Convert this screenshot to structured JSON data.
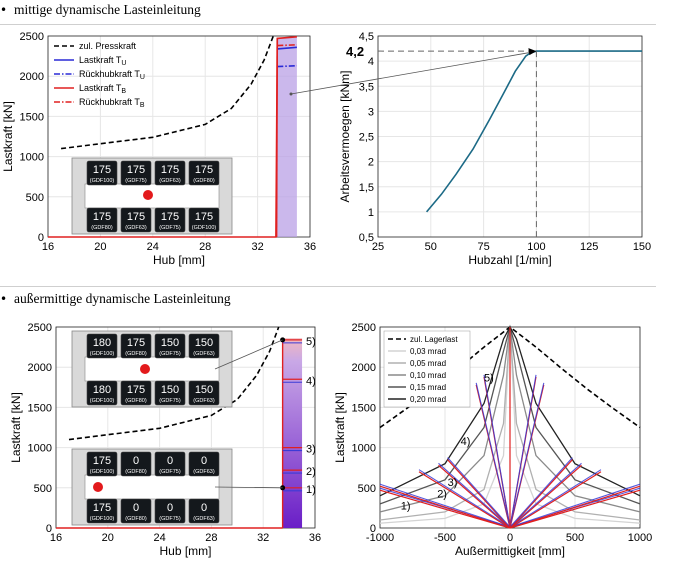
{
  "headings": [
    {
      "text": "mittige dynamische Lasteinleitung"
    },
    {
      "text": "außermittige dynamische Lasteinleitung"
    }
  ],
  "chart_data": [
    {
      "id": "top_left",
      "type": "line",
      "xlabel": "Hub [mm]",
      "ylabel": "Lastkraft [kN]",
      "xlim": [
        16,
        36
      ],
      "ylim": [
        0,
        2500
      ],
      "xticks": [
        16,
        20,
        24,
        28,
        32,
        36
      ],
      "yticks": [
        0,
        500,
        1000,
        1500,
        2000,
        2500
      ],
      "grid": true,
      "legend": {
        "location": "top-right",
        "entries": [
          {
            "label": "zul. Presskraft",
            "color": "#000000",
            "style": "dashed"
          },
          {
            "label": "Lastkraft T",
            "sub": "U",
            "color": "#2a2ad6",
            "style": "solid"
          },
          {
            "label": "Rückhubkraft T",
            "sub": "U",
            "color": "#2a2ad6",
            "style": "dashdot"
          },
          {
            "label": "Lastkraft T",
            "sub": "B",
            "color": "#e02020",
            "style": "solid"
          },
          {
            "label": "Rückhubkraft T",
            "sub": "B",
            "color": "#e02020",
            "style": "dashdot"
          }
        ]
      },
      "series": [
        {
          "name": "zul. Presskraft",
          "x": [
            17,
            20,
            24,
            28,
            30,
            31.5,
            32.5,
            33.2
          ],
          "y": [
            1100,
            1160,
            1240,
            1400,
            1600,
            1900,
            2200,
            2500
          ]
        },
        {
          "name": "Lastkraft T_U",
          "x": [
            33.5,
            35
          ],
          "y": [
            2340,
            2360
          ]
        },
        {
          "name": "Rückhubkraft T_U",
          "x": [
            33.5,
            35
          ],
          "y": [
            2120,
            2130
          ]
        },
        {
          "name": "Lastkraft T_B",
          "x": [
            16,
            33.4,
            33.5,
            35
          ],
          "y": [
            0,
            0,
            2470,
            2490
          ]
        },
        {
          "name": "Rückhubkraft T_B",
          "x": [
            33.5,
            35
          ],
          "y": [
            2380,
            2390
          ]
        }
      ],
      "inset": {
        "rows": [
          [
            {
              "value": "175",
              "label": "(GDF100)"
            },
            {
              "value": "175",
              "label": "(GDF75)"
            },
            {
              "value": "175",
              "label": "(GDF63)"
            },
            {
              "value": "175",
              "label": "(GDF80)"
            }
          ],
          [
            {
              "value": "175",
              "label": "(GDF80)"
            },
            {
              "value": "175",
              "label": "(GDF63)"
            },
            {
              "value": "175",
              "label": "(GDF75)"
            },
            {
              "value": "175",
              "label": "(GDF100)"
            }
          ]
        ]
      }
    },
    {
      "id": "top_right",
      "type": "line",
      "xlabel": "Hubzahl [1/min]",
      "ylabel": "Arbeitsvermoegen [kNm]",
      "xlim": [
        25,
        150
      ],
      "ylim": [
        0.5,
        4.5
      ],
      "xticks": [
        25,
        50,
        75,
        100,
        125,
        150
      ],
      "yticks": [
        0.5,
        1,
        1.5,
        2,
        2.5,
        3,
        3.5,
        4,
        4.5
      ],
      "grid": true,
      "annotation": {
        "text": "4,2",
        "x": 100,
        "y": 4.2
      },
      "series": [
        {
          "name": "Arbeitsvermoegen",
          "x": [
            48,
            55,
            62,
            70,
            78,
            85,
            90,
            95,
            97,
            100,
            150
          ],
          "y": [
            1.0,
            1.35,
            1.75,
            2.25,
            2.85,
            3.4,
            3.8,
            4.1,
            4.16,
            4.2,
            4.2
          ]
        }
      ]
    },
    {
      "id": "bottom_left",
      "type": "line",
      "xlabel": "Hub [mm]",
      "ylabel": "Lastkraft [kN]",
      "xlim": [
        16,
        36
      ],
      "ylim": [
        0,
        2500
      ],
      "xticks": [
        16,
        20,
        24,
        28,
        32,
        36
      ],
      "yticks": [
        0,
        500,
        1000,
        1500,
        2000,
        2500
      ],
      "grid": true,
      "markers": [
        {
          "label": "5)",
          "y": 2340
        },
        {
          "label": "4)",
          "y": 1850
        },
        {
          "label": "3)",
          "y": 1000
        },
        {
          "label": "2)",
          "y": 720
        },
        {
          "label": "1)",
          "y": 500
        }
      ],
      "series": [
        {
          "name": "zul. Presskraft",
          "x": [
            17,
            20,
            24,
            28,
            30,
            31.5,
            32.5,
            33.2
          ],
          "y": [
            1100,
            1160,
            1240,
            1400,
            1600,
            1900,
            2200,
            2500
          ]
        }
      ],
      "inset_top": {
        "rows": [
          [
            {
              "value": "180",
              "label": "(GDF100)"
            },
            {
              "value": "175",
              "label": "(GDF80)"
            },
            {
              "value": "150",
              "label": "(GDF75)"
            },
            {
              "value": "150",
              "label": "(GDF63)"
            }
          ],
          [
            {
              "value": "180",
              "label": "(GDF100)"
            },
            {
              "value": "175",
              "label": "(GDF80)"
            },
            {
              "value": "150",
              "label": "(GDF75)"
            },
            {
              "value": "150",
              "label": "(GDF63)"
            }
          ]
        ]
      },
      "inset_bottom": {
        "rows": [
          [
            {
              "value": "175",
              "label": "(GDF100)"
            },
            {
              "value": "0",
              "label": "(GDF80)"
            },
            {
              "value": "0",
              "label": "(GDF75)"
            },
            {
              "value": "0",
              "label": "(GDF63)"
            }
          ],
          [
            {
              "value": "175",
              "label": "(GDF100)"
            },
            {
              "value": "0",
              "label": "(GDF80)"
            },
            {
              "value": "0",
              "label": "(GDF75)"
            },
            {
              "value": "0",
              "label": "(GDF63)"
            }
          ]
        ]
      }
    },
    {
      "id": "bottom_right",
      "type": "line",
      "xlabel": "Außermittigkeit [mm]",
      "ylabel": "Lastkraft [kN]",
      "xlim": [
        -1000,
        1000
      ],
      "ylim": [
        0,
        2500
      ],
      "xticks": [
        -1000,
        -500,
        0,
        500,
        1000
      ],
      "yticks": [
        0,
        500,
        1000,
        1500,
        2000,
        2500
      ],
      "grid": true,
      "legend": {
        "location": "top-left",
        "entries": [
          {
            "label": "zul. Lagerlast",
            "color": "#000000",
            "style": "dashed"
          },
          {
            "label": "0,03 mrad",
            "color": "#d3d3d3",
            "style": "solid"
          },
          {
            "label": "0,05 mrad",
            "color": "#b0b0b0",
            "style": "solid"
          },
          {
            "label": "0,10 mrad",
            "color": "#8a8a8a",
            "style": "solid"
          },
          {
            "label": "0,15 mrad",
            "color": "#555555",
            "style": "solid"
          },
          {
            "label": "0,20 mrad",
            "color": "#222222",
            "style": "solid"
          }
        ]
      },
      "series": [
        {
          "name": "zul. Lagerlast",
          "x": [
            -1000,
            -800,
            -600,
            -400,
            -200,
            0,
            200,
            400,
            600,
            800,
            1000
          ],
          "y": [
            1250,
            1480,
            1720,
            1980,
            2250,
            2500,
            2250,
            1980,
            1720,
            1480,
            1250
          ]
        },
        {
          "name": "0,03 mrad",
          "x": [
            -1000,
            -500,
            -200,
            -50,
            0,
            50,
            200,
            500,
            1000
          ],
          "y": [
            60,
            120,
            300,
            900,
            2500,
            900,
            300,
            120,
            60
          ]
        },
        {
          "name": "0,05 mrad",
          "x": [
            -1000,
            -500,
            -200,
            -50,
            0,
            50,
            200,
            500,
            1000
          ],
          "y": [
            100,
            200,
            480,
            1300,
            2500,
            1300,
            480,
            200,
            100
          ]
        },
        {
          "name": "0,10 mrad",
          "x": [
            -1000,
            -500,
            -200,
            -50,
            0,
            50,
            200,
            500,
            1000
          ],
          "y": [
            200,
            400,
            900,
            1900,
            2500,
            1900,
            900,
            400,
            200
          ]
        },
        {
          "name": "0,15 mrad",
          "x": [
            -1000,
            -500,
            -200,
            -50,
            0,
            50,
            200,
            500,
            1000
          ],
          "y": [
            300,
            600,
            1250,
            2200,
            2500,
            2200,
            1250,
            600,
            300
          ]
        },
        {
          "name": "0,20 mrad",
          "x": [
            -1000,
            -500,
            -200,
            -50,
            0,
            50,
            200,
            500,
            1000
          ],
          "y": [
            400,
            800,
            1550,
            2350,
            2500,
            2350,
            1550,
            800,
            400
          ]
        }
      ],
      "markers": [
        {
          "label": "1)",
          "x": -840,
          "y": 230
        },
        {
          "label": "2)",
          "x": -560,
          "y": 380
        },
        {
          "label": "3)",
          "x": -480,
          "y": 520
        },
        {
          "label": "4)",
          "x": -380,
          "y": 1030
        },
        {
          "label": "5)",
          "x": -200,
          "y": 1820
        }
      ]
    }
  ]
}
